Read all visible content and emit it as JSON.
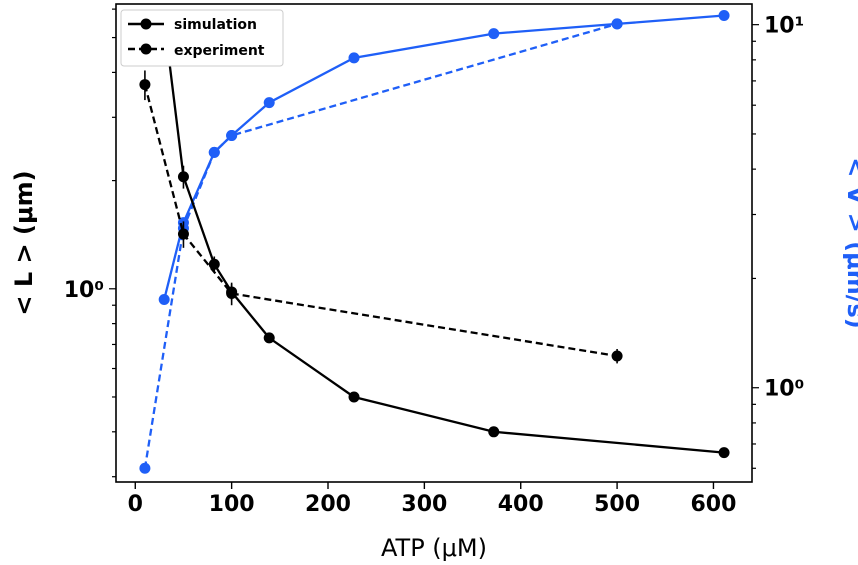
{
  "chart_data": {
    "type": "line",
    "xlabel": "ATP (μM)",
    "ylabel_left": "< L > (μm)",
    "ylabel_right": "< V > (μm/s)",
    "x_ticks": [
      "0",
      "100",
      "200",
      "300",
      "400",
      "500",
      "600"
    ],
    "xlim": [
      -20,
      640
    ],
    "left_axis": {
      "scale": "log",
      "ylim": [
        0.29,
        6.2
      ],
      "major_tick_label": "10⁰",
      "major_tick_value": 1
    },
    "right_axis": {
      "scale": "log",
      "ylim": [
        0.55,
        11.4
      ],
      "major_tick_labels": [
        "10⁰",
        "10¹"
      ],
      "major_tick_values": [
        1,
        10
      ]
    },
    "legend": {
      "placement": "top-left",
      "entries": [
        "simulation",
        "experiment"
      ]
    },
    "colors": {
      "L": "#000000",
      "V": "#1f5ff7"
    },
    "series": [
      {
        "name": "simulation",
        "axis": "left",
        "style": "solid",
        "color": "#000000",
        "points": [
          [
            30,
            5.6
          ],
          [
            50,
            2.05
          ],
          [
            82,
            1.17
          ],
          [
            100,
            0.98
          ],
          [
            139,
            0.73
          ],
          [
            227,
            0.5
          ],
          [
            372,
            0.4
          ],
          [
            611,
            0.35
          ]
        ],
        "err": [
          0.25,
          0.15,
          0.06,
          0.05,
          0.02,
          0.01,
          0.01,
          0.01
        ]
      },
      {
        "name": "experiment",
        "axis": "left",
        "style": "dashed",
        "color": "#000000",
        "points": [
          [
            10,
            3.7
          ],
          [
            50,
            1.42
          ],
          [
            100,
            0.97
          ],
          [
            500,
            0.65
          ]
        ],
        "err": [
          0.35,
          0.12,
          0.07,
          0.03
        ]
      },
      {
        "name": "V simulation",
        "axis": "right",
        "style": "solid",
        "color": "#1f5ff7",
        "points": [
          [
            30,
            1.75
          ],
          [
            50,
            2.85
          ],
          [
            82,
            4.45
          ],
          [
            100,
            4.95
          ],
          [
            139,
            6.1
          ],
          [
            227,
            8.1
          ],
          [
            372,
            9.45
          ],
          [
            500,
            10.05
          ],
          [
            611,
            10.6
          ]
        ]
      },
      {
        "name": "V experiment",
        "axis": "right",
        "style": "dashed",
        "color": "#1f5ff7",
        "points": [
          [
            10,
            0.6
          ],
          [
            50,
            2.75
          ],
          [
            82,
            4.45
          ],
          [
            100,
            4.95
          ],
          [
            500,
            10.05
          ]
        ]
      }
    ]
  }
}
